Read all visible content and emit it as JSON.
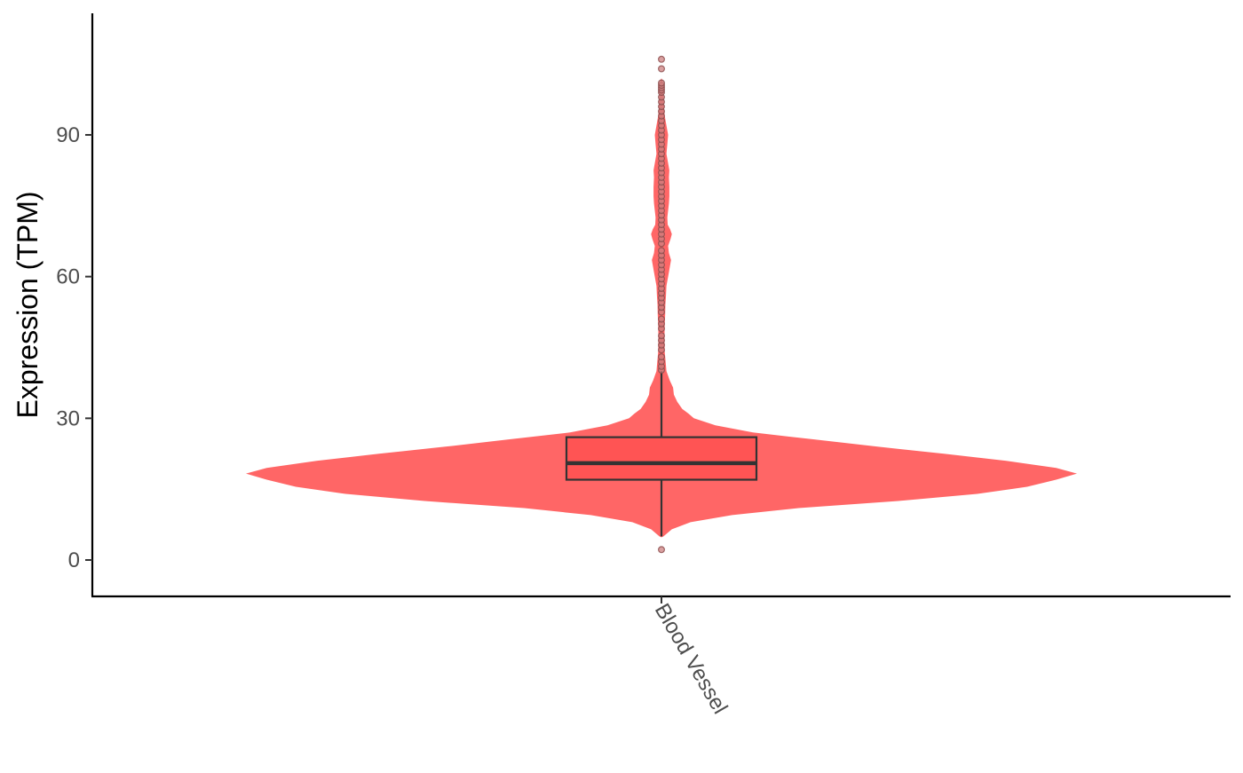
{
  "chart_data": {
    "type": "violin",
    "title": "",
    "xlabel": "",
    "ylabel": "Expression (TPM)",
    "ylim": [
      -7,
      115
    ],
    "yticks": [
      0,
      30,
      60,
      90
    ],
    "grid": false,
    "legend": "none",
    "categories": [
      "Blood Vessel"
    ],
    "fill_color": "#ff6666",
    "box_color": "#333333",
    "point_color": "#cc8080",
    "violin": {
      "y": [
        5.0,
        6.5,
        8.0,
        9.5,
        11.0,
        12.5,
        14.0,
        15.5,
        17.0,
        18.3,
        19.5,
        21.0,
        22.5,
        24.0,
        25.5,
        27.0,
        28.5,
        30.0,
        31.0,
        32.0,
        33.5,
        35.0,
        36.5,
        38.0,
        40.0,
        42.0,
        44.0,
        46.0,
        48.0,
        50.0,
        52.0,
        54.0,
        56.0,
        58.0,
        60.0,
        62.0,
        63.5,
        65.0,
        66.5,
        68.0,
        69.0,
        70.0,
        71.0,
        72.5,
        74.0,
        75.5,
        77.0,
        79.0,
        81.0,
        82.5,
        84.0,
        86.0,
        88.0,
        90.0,
        92.0,
        94.0,
        96.0,
        98.0,
        100.0,
        101.5
      ],
      "density": [
        0.005,
        0.025,
        0.07,
        0.17,
        0.33,
        0.57,
        0.76,
        0.88,
        0.95,
        1.0,
        0.95,
        0.83,
        0.68,
        0.52,
        0.37,
        0.22,
        0.13,
        0.078,
        0.065,
        0.05,
        0.038,
        0.03,
        0.028,
        0.02,
        0.012,
        0.01,
        0.008,
        0.0075,
        0.0075,
        0.008,
        0.009,
        0.0095,
        0.011,
        0.012,
        0.016,
        0.02,
        0.023,
        0.018,
        0.016,
        0.022,
        0.025,
        0.021,
        0.015,
        0.014,
        0.016,
        0.018,
        0.019,
        0.019,
        0.018,
        0.019,
        0.016,
        0.012,
        0.014,
        0.016,
        0.012,
        0.008,
        0.006,
        0.005,
        0.004,
        0.0025
      ]
    },
    "box": {
      "lower_whisker": 5,
      "q1": 17,
      "median": 20.5,
      "q3": 26,
      "upper_whisker": 40
    },
    "points": [
      2.2,
      40.2,
      41.0,
      42.0,
      43.0,
      44.5,
      45.5,
      46.5,
      47.5,
      49.0,
      50.0,
      51.0,
      52.5,
      53.5,
      54.5,
      55.5,
      56.5,
      57.5,
      58.5,
      59.5,
      60.5,
      61.5,
      62.5,
      63.5,
      64.5,
      65.5,
      67.0,
      68.0,
      69.0,
      70.0,
      71.0,
      72.0,
      73.0,
      74.0,
      75.0,
      76.0,
      77.0,
      78.0,
      79.0,
      80.0,
      81.0,
      82.0,
      83.0,
      84.0,
      85.0,
      86.0,
      87.0,
      88.0,
      89.0,
      90.0,
      91.0,
      92.0,
      93.0,
      94.0,
      95.0,
      96.0,
      97.0,
      98.0,
      99.0,
      99.5,
      100.0,
      100.5,
      101.0,
      104.0,
      106.0
    ]
  }
}
